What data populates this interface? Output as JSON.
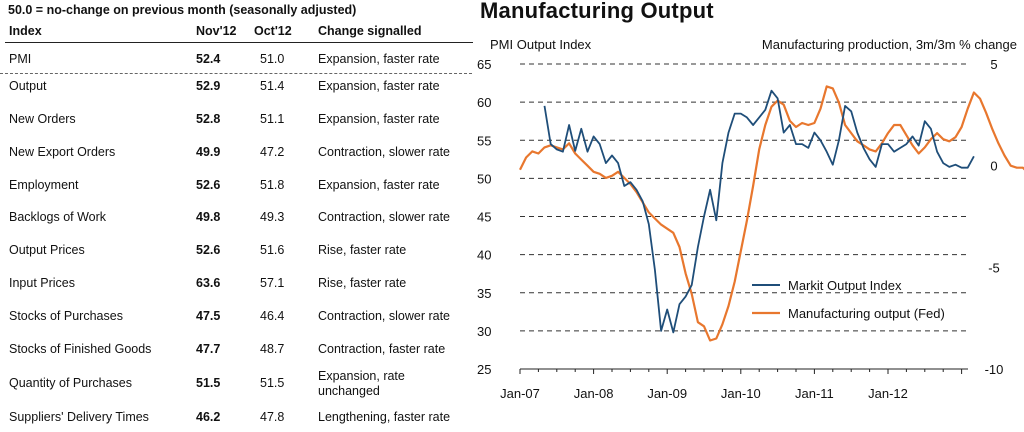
{
  "table": {
    "note": "50.0 = no-change on previous month (seasonally adjusted)",
    "headers": {
      "index": "Index",
      "nov": "Nov'12",
      "oct": "Oct'12",
      "change": "Change signalled"
    },
    "rows": [
      {
        "index": "PMI",
        "nov": "52.4",
        "oct": "51.0",
        "change": [
          "Expansion, faster rate"
        ]
      },
      {
        "index": "Output",
        "nov": "52.9",
        "oct": "51.4",
        "change": [
          "Expansion, faster rate"
        ]
      },
      {
        "index": "New Orders",
        "nov": "52.8",
        "oct": "51.1",
        "change": [
          "Expansion, faster rate"
        ]
      },
      {
        "index": "New Export Orders",
        "nov": "49.9",
        "oct": "47.2",
        "change": [
          "Contraction, slower rate"
        ]
      },
      {
        "index": "Employment",
        "nov": "52.6",
        "oct": "51.8",
        "change": [
          "Expansion, faster rate"
        ]
      },
      {
        "index": "Backlogs of Work",
        "nov": "49.8",
        "oct": "49.3",
        "change": [
          "Contraction, slower rate"
        ]
      },
      {
        "index": "Output Prices",
        "nov": "52.6",
        "oct": "51.6",
        "change": [
          "Rise, faster rate"
        ]
      },
      {
        "index": "Input Prices",
        "nov": "63.6",
        "oct": "57.1",
        "change": [
          "Rise, faster rate"
        ]
      },
      {
        "index": "Stocks of Purchases",
        "nov": "47.5",
        "oct": "46.4",
        "change": [
          "Contraction, slower rate"
        ]
      },
      {
        "index": "Stocks of Finished Goods",
        "nov": "47.7",
        "oct": "48.7",
        "change": [
          "Contraction, faster rate"
        ]
      },
      {
        "index": "Quantity of Purchases",
        "nov": "51.5",
        "oct": "51.5",
        "change": [
          "Expansion, rate",
          "unchanged"
        ]
      },
      {
        "index": "Suppliers' Delivery Times",
        "nov": "46.2",
        "oct": "47.8",
        "change": [
          "Lengthening, faster rate"
        ]
      }
    ]
  },
  "chart_data": {
    "type": "line",
    "title": "Manufacturing Output",
    "ylabel_left": "PMI Output Index",
    "ylabel_right": "Manufacturing production, 3m/3m % change",
    "ylim_left": [
      25,
      65
    ],
    "ylim_right": [
      -10,
      5
    ],
    "yticks_left": [
      "25",
      "30",
      "35",
      "40",
      "45",
      "50",
      "55",
      "60",
      "65"
    ],
    "yticks_right": [
      "-10",
      "-5",
      "0",
      "5"
    ],
    "xticks": [
      "Jan-07",
      "Jan-08",
      "Jan-09",
      "Jan-10",
      "Jan-11",
      "Jan-12"
    ],
    "grid": true,
    "legend_position": "bottom-right",
    "colors": {
      "markit": "#1f4e79",
      "fed": "#e8772e"
    },
    "series": [
      {
        "name": "Markit Output Index",
        "axis": "left",
        "start": "2007-05",
        "values": [
          59.5,
          54.5,
          53.8,
          53.5,
          57,
          53.6,
          56.5,
          53.5,
          55.5,
          54.5,
          52,
          53,
          52,
          49,
          49.5,
          48.5,
          47,
          44,
          38,
          30,
          32.8,
          29.8,
          33.5,
          34.5,
          36,
          41,
          45,
          48.5,
          44.5,
          52,
          56,
          58.5,
          58.5,
          58,
          57,
          58,
          59,
          61.5,
          60.5,
          56,
          57,
          54.5,
          54.5,
          54,
          56,
          55,
          53.5,
          51.8,
          55,
          59.5,
          58.8,
          56,
          54,
          52.5,
          51.5,
          54.5,
          54.5,
          53.5,
          54,
          54.5,
          55.5,
          54.3,
          57.5,
          56.5,
          53.5,
          52,
          51.5,
          51.8,
          51.4,
          51.4,
          52.9
        ]
      },
      {
        "name": "Manufacturing output (Fed)",
        "axis": "right",
        "start": "2007-01",
        "values": [
          -0.2,
          0.4,
          0.7,
          0.6,
          0.9,
          1.0,
          0.9,
          0.8,
          1.1,
          0.6,
          0.3,
          0.0,
          -0.3,
          -0.4,
          -0.6,
          -0.5,
          -0.3,
          -0.6,
          -0.9,
          -1.3,
          -1.8,
          -2.3,
          -2.6,
          -2.9,
          -3.1,
          -3.3,
          -4.0,
          -5.3,
          -6.3,
          -7.7,
          -7.9,
          -8.6,
          -8.5,
          -7.8,
          -6.9,
          -5.7,
          -4.2,
          -2.7,
          -1.0,
          0.8,
          2.0,
          2.9,
          3.2,
          3.0,
          2.2,
          1.9,
          2.1,
          2.0,
          2.1,
          2.8,
          3.9,
          3.8,
          3.1,
          2.0,
          1.6,
          1.2,
          1.0,
          0.8,
          0.7,
          1.1,
          1.6,
          2.0,
          2.0,
          1.5,
          1.0,
          0.6,
          0.9,
          1.3,
          1.6,
          1.3,
          1.2,
          1.4,
          1.9,
          2.8,
          3.6,
          3.3,
          2.6,
          1.8,
          1.1,
          0.5,
          0.0,
          -0.1,
          -0.1,
          -0.4,
          -1.1
        ]
      }
    ]
  }
}
